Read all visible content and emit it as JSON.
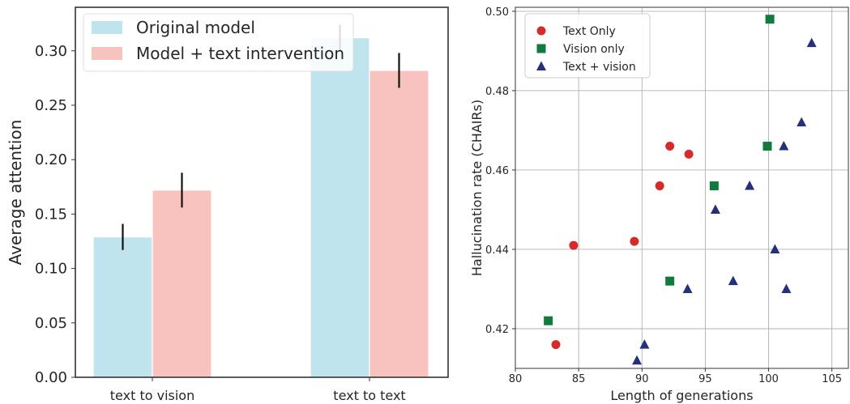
{
  "chart_data": [
    {
      "type": "bar",
      "categories": [
        "text to vision",
        "text to text"
      ],
      "ylabel": "Average attention",
      "xlabel": "",
      "ylim": [
        0,
        0.34
      ],
      "yticks": [
        "0.00",
        "0.05",
        "0.10",
        "0.15",
        "0.20",
        "0.25",
        "0.30"
      ],
      "ytick_values": [
        0,
        0.05,
        0.1,
        0.15,
        0.2,
        0.25,
        0.3
      ],
      "grid": false,
      "legend_position": "top-left",
      "series": [
        {
          "name": "Original model",
          "color": "#c0e4ed",
          "values": [
            0.129,
            0.312
          ],
          "errors": [
            0.012,
            0.012
          ]
        },
        {
          "name": "Model + text intervention",
          "color": "#f8c3bf",
          "values": [
            0.172,
            0.282
          ],
          "errors": [
            0.016,
            0.016
          ]
        }
      ]
    },
    {
      "type": "scatter",
      "xlabel": "Length of generations",
      "ylabel": "Hallucination rate (CHAIRs)",
      "xlim": [
        80,
        106.3
      ],
      "ylim": [
        0.41,
        0.501
      ],
      "xticks": [
        "80",
        "85",
        "90",
        "95",
        "100",
        "105"
      ],
      "xtick_values": [
        80,
        85,
        90,
        95,
        100,
        105
      ],
      "yticks": [
        "0.42",
        "0.44",
        "0.46",
        "0.48",
        "0.50"
      ],
      "ytick_values": [
        0.42,
        0.44,
        0.46,
        0.48,
        0.5
      ],
      "grid": true,
      "legend_position": "top-left",
      "series": [
        {
          "name": "Text Only",
          "marker": "circle",
          "color": "#d62b2b",
          "points": [
            [
              83.2,
              0.416
            ],
            [
              84.6,
              0.441
            ],
            [
              89.4,
              0.442
            ],
            [
              91.4,
              0.456
            ],
            [
              92.2,
              0.466
            ],
            [
              93.7,
              0.464
            ]
          ]
        },
        {
          "name": "Vision only",
          "marker": "square",
          "color": "#117a3e",
          "points": [
            [
              82.6,
              0.422
            ],
            [
              92.2,
              0.432
            ],
            [
              95.7,
              0.456
            ],
            [
              99.9,
              0.466
            ],
            [
              100.1,
              0.498
            ]
          ]
        },
        {
          "name": "Text + vision",
          "marker": "triangle",
          "color": "#24317a",
          "points": [
            [
              89.6,
              0.412
            ],
            [
              90.2,
              0.416
            ],
            [
              93.6,
              0.43
            ],
            [
              95.8,
              0.45
            ],
            [
              97.2,
              0.432
            ],
            [
              98.5,
              0.456
            ],
            [
              100.5,
              0.44
            ],
            [
              101.2,
              0.466
            ],
            [
              101.4,
              0.43
            ],
            [
              102.6,
              0.472
            ],
            [
              103.4,
              0.492
            ]
          ]
        }
      ]
    }
  ]
}
